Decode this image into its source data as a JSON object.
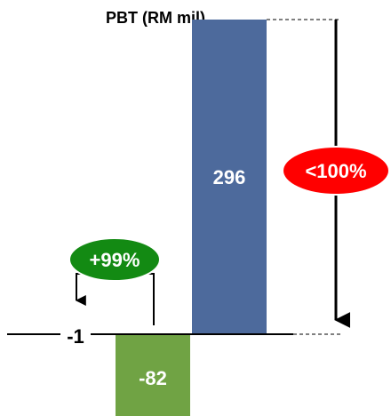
{
  "chart_data": {
    "type": "bar",
    "title": "PBT (RM mil)",
    "categories": [
      "",
      "",
      ""
    ],
    "values": [
      -1,
      -82,
      296
    ],
    "data_labels": [
      "-1",
      "-82",
      "296"
    ],
    "ylim": [
      -100,
      320
    ],
    "grid": false,
    "legend": "none",
    "annotations": [
      {
        "text": "+99%",
        "kind": "change-callout",
        "color": "#138a13"
      },
      {
        "text": "<100%",
        "kind": "change-callout",
        "color": "#ff0000"
      }
    ]
  },
  "colors": {
    "negative_bar": "#70a344",
    "positive_bar": "#4d6a9c",
    "good_callout": "#138a13",
    "bad_callout": "#ff0000",
    "bar_label_light": "#ffffff",
    "text": "#000000"
  }
}
